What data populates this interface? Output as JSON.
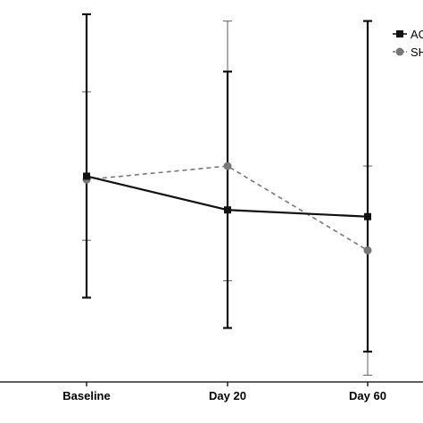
{
  "chart_data": {
    "type": "line",
    "title": "",
    "xlabel": "",
    "ylabel": "",
    "categories": [
      "Baseline",
      "Day 20",
      "Day 60"
    ],
    "ylim": [
      0,
      10
    ],
    "grid": false,
    "legend_position": "top-right",
    "series": [
      {
        "name": "AC",
        "color": "#111111",
        "line_style": "solid",
        "marker": "square",
        "values": [
          6.1,
          5.1,
          4.9
        ],
        "error_low": [
          2.5,
          1.6,
          0.9
        ],
        "error_high": [
          10.9,
          9.2,
          10.7
        ]
      },
      {
        "name": "SH",
        "color": "#777777",
        "line_style": "dashed",
        "marker": "circle",
        "values": [
          6.0,
          6.4,
          3.9
        ],
        "error_low": [
          4.2,
          3.0,
          0.2
        ],
        "error_high": [
          8.6,
          10.7,
          6.4
        ]
      }
    ]
  }
}
